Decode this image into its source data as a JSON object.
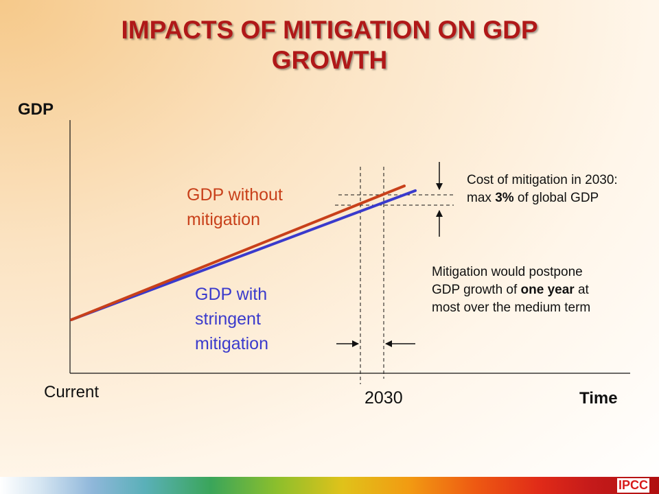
{
  "title_line1": "IMPACTS OF MITIGATION ON GDP",
  "title_line2": "GROWTH",
  "brand": "IPCC",
  "chart_data": {
    "type": "line",
    "xlabel": "Time",
    "ylabel": "GDP",
    "x_tick_labels": [
      "Current",
      "2030"
    ],
    "grid": false,
    "series": [
      {
        "name_lines": [
          "GDP without",
          "mitigation"
        ],
        "color": "#c8401a",
        "points": [
          {
            "x": "Current",
            "y": 0
          },
          {
            "x": "end",
            "y": 100
          }
        ]
      },
      {
        "name_lines": [
          "GDP with",
          "stringent",
          "mitigation"
        ],
        "color": "#3a3acc",
        "points": [
          {
            "x": "Current",
            "y": 0
          },
          {
            "x": "end",
            "y": 97
          }
        ]
      }
    ],
    "annotations": {
      "cost": {
        "pre": "Cost of mitigation in 2030: max ",
        "bold": "3%",
        "post": " of global GDP"
      },
      "postpone": {
        "pre": "Mitigation would postpone GDP growth of ",
        "bold": "one year",
        "post": " at most over the medium term"
      }
    }
  }
}
